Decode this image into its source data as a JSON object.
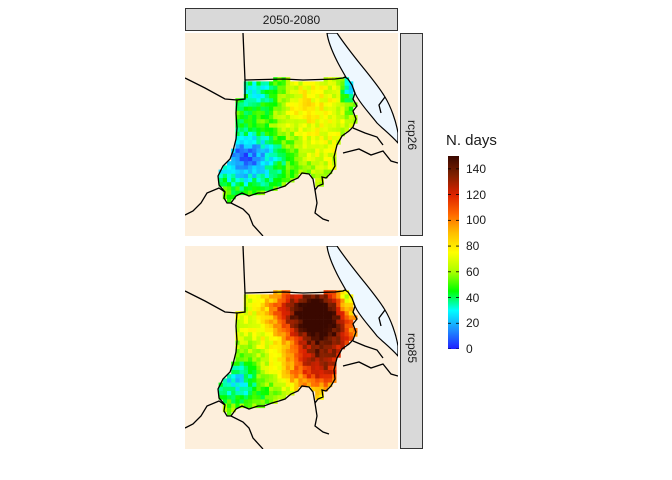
{
  "facet": {
    "column_label": "2050-2080",
    "row_labels": [
      "rcp26",
      "rcp85"
    ]
  },
  "legend": {
    "title": "N. days",
    "min": 0,
    "max": 150,
    "ticks": [
      "0",
      "20",
      "40",
      "60",
      "80",
      "100",
      "120",
      "140"
    ]
  },
  "colors": {
    "land": "#fdefdc",
    "water": "#eef8ff",
    "border": "#000000",
    "strip": "#d9d9d9",
    "gradient": [
      "#2020ff",
      "#1e90ff",
      "#00ffff",
      "#00ff00",
      "#aaff00",
      "#ffff00",
      "#ffbf00",
      "#ff6600",
      "#dd2200",
      "#802000",
      "#3a0800"
    ]
  }
}
